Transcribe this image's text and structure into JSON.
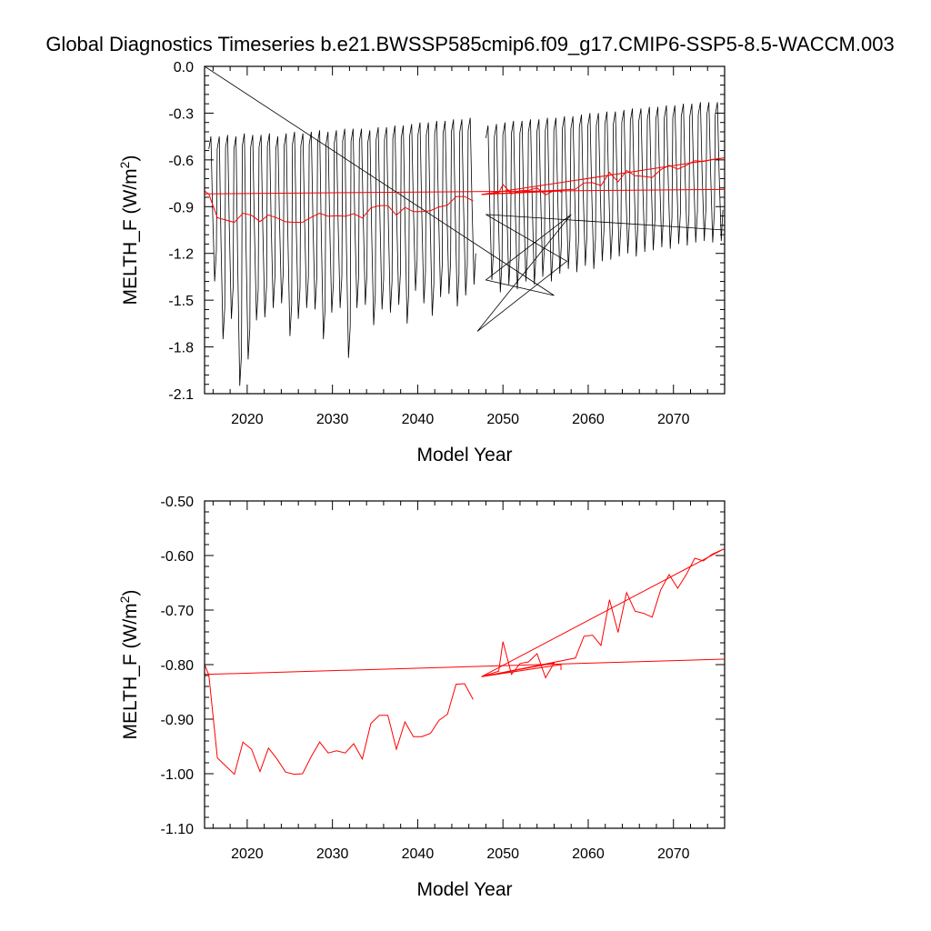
{
  "figure": {
    "title": "Global Diagnostics Timeseries b.e21.BWSSP585cmip6.f09_g17.CMIP6-SSP5-8.5-WACCM.003"
  },
  "chart_data": [
    {
      "type": "line",
      "ylabel": "MELTH_F (W/m²)",
      "ylabel_main": "MELTH_F (W/m",
      "ylabel_sup": "2",
      "ylabel_close": ")",
      "xlabel": "Model Year",
      "xlim": [
        2015,
        2076
      ],
      "ylim": [
        -2.1,
        0.0
      ],
      "xticks": [
        2020,
        2030,
        2040,
        2050,
        2060,
        2070
      ],
      "xtick_labels": [
        "2020",
        "2030",
        "2040",
        "2050",
        "2060",
        "2070"
      ],
      "yticks": [
        0.0,
        -0.3,
        -0.6,
        -0.9,
        -1.2,
        -1.5,
        -1.8,
        -2.1
      ],
      "ytick_labels": [
        "0.0",
        "-0.3",
        "-0.6",
        "-0.9",
        "-1.2",
        "-1.5",
        "-1.8",
        "-2.1"
      ],
      "grid": false,
      "series": [
        {
          "color": "#000000",
          "kind": "monthly",
          "points": [
            [
              2015.0,
              0.0
            ],
            [
              2056.0,
              -1.47
            ],
            [
              2048.0,
              -1.37
            ],
            [
              2058.0,
              -0.95
            ],
            [
              2047.0,
              -1.7
            ],
            [
              2057.5,
              -1.25
            ],
            [
              2048.0,
              -0.95
            ],
            [
              2076.0,
              -1.05
            ]
          ],
          "segments": [
            {
              "x_start": 2015.5,
              "x_end": 2046.9,
              "max": [
                -0.45,
                -0.45,
                -0.44,
                -0.45,
                -0.43,
                -0.44,
                -0.44,
                -0.43,
                -0.45,
                -0.43,
                -0.42,
                -0.43,
                -0.42,
                -0.41,
                -0.42,
                -0.41,
                -0.4,
                -0.4,
                -0.4,
                -0.41,
                -0.39,
                -0.39,
                -0.38,
                -0.38,
                -0.37,
                -0.36,
                -0.36,
                -0.35,
                -0.35,
                -0.34,
                -0.34,
                -0.33
              ],
              "min": [
                -1.38,
                -1.75,
                -1.62,
                -2.05,
                -1.88,
                -1.63,
                -1.61,
                -1.55,
                -1.52,
                -1.73,
                -1.62,
                -1.55,
                -1.56,
                -1.75,
                -1.58,
                -1.55,
                -1.87,
                -1.55,
                -1.53,
                -1.66,
                -1.56,
                -1.58,
                -1.53,
                -1.65,
                -1.44,
                -1.52,
                -1.6,
                -1.48,
                -1.46,
                -1.54,
                -1.47,
                -1.4
              ]
            },
            {
              "x_start": 2048.0,
              "x_end": 2075.9,
              "max": [
                -0.38,
                -0.37,
                -0.36,
                -0.35,
                -0.35,
                -0.34,
                -0.34,
                -0.33,
                -0.33,
                -0.32,
                -0.32,
                -0.31,
                -0.3,
                -0.3,
                -0.29,
                -0.29,
                -0.28,
                -0.27,
                -0.27,
                -0.26,
                -0.26,
                -0.25,
                -0.25,
                -0.24,
                -0.24,
                -0.23,
                -0.23,
                -0.23
              ],
              "min": [
                -1.37,
                -1.45,
                -1.4,
                -1.43,
                -1.38,
                -1.4,
                -1.35,
                -1.38,
                -1.33,
                -1.3,
                -1.32,
                -1.28,
                -1.3,
                -1.25,
                -1.24,
                -1.22,
                -1.2,
                -1.22,
                -1.19,
                -1.18,
                -1.16,
                -1.17,
                -1.14,
                -1.15,
                -1.13,
                -1.12,
                -1.13,
                -1.12
              ]
            }
          ]
        },
        {
          "color": "#ff0000",
          "kind": "annual",
          "segments": [
            [
              [
                2015.0,
                -0.8
              ],
              [
                2015.5,
                -0.819
              ],
              [
                2016.5,
                -0.971
              ],
              [
                2017.5,
                -0.986
              ],
              [
                2018.5,
                -1.001
              ],
              [
                2019.5,
                -0.942
              ],
              [
                2020.5,
                -0.955
              ],
              [
                2021.5,
                -0.996
              ],
              [
                2022.5,
                -0.953
              ],
              [
                2023.5,
                -0.973
              ],
              [
                2024.5,
                -0.997
              ],
              [
                2025.5,
                -1.001
              ],
              [
                2026.5,
                -1.0
              ],
              [
                2027.5,
                -0.969
              ],
              [
                2028.5,
                -0.942
              ],
              [
                2029.5,
                -0.962
              ],
              [
                2030.5,
                -0.958
              ],
              [
                2031.5,
                -0.962
              ],
              [
                2032.5,
                -0.945
              ],
              [
                2033.5,
                -0.973
              ],
              [
                2034.5,
                -0.908
              ],
              [
                2035.5,
                -0.893
              ],
              [
                2036.5,
                -0.893
              ],
              [
                2037.5,
                -0.955
              ],
              [
                2038.5,
                -0.905
              ],
              [
                2039.5,
                -0.932
              ],
              [
                2040.5,
                -0.932
              ],
              [
                2041.5,
                -0.926
              ],
              [
                2042.5,
                -0.902
              ],
              [
                2043.5,
                -0.891
              ],
              [
                2044.5,
                -0.836
              ],
              [
                2045.5,
                -0.835
              ],
              [
                2046.5,
                -0.864
              ]
            ],
            [
              [
                2015.0,
                -0.818
              ],
              [
                2075.9,
                -0.79
              ]
            ],
            [
              [
                2047.5,
                -0.822
              ],
              [
                2049.5,
                -0.812
              ],
              [
                2050.0,
                -0.758
              ],
              [
                2051.0,
                -0.818
              ],
              [
                2052.0,
                -0.798
              ],
              [
                2053.0,
                -0.795
              ],
              [
                2054.0,
                -0.78
              ],
              [
                2055.0,
                -0.824
              ],
              [
                2056.0,
                -0.797
              ],
              [
                2047.5,
                -0.822
              ],
              [
                2056.8,
                -0.8
              ],
              [
                2056.8,
                -0.81
              ]
            ],
            [
              [
                2047.5,
                -0.822
              ],
              [
                2058.5,
                -0.788
              ],
              [
                2059.5,
                -0.748
              ],
              [
                2060.5,
                -0.746
              ],
              [
                2061.5,
                -0.765
              ],
              [
                2062.5,
                -0.681
              ],
              [
                2063.5,
                -0.741
              ],
              [
                2064.5,
                -0.668
              ],
              [
                2065.5,
                -0.702
              ],
              [
                2066.5,
                -0.706
              ],
              [
                2067.5,
                -0.713
              ],
              [
                2068.5,
                -0.663
              ],
              [
                2069.5,
                -0.635
              ],
              [
                2070.5,
                -0.66
              ],
              [
                2071.5,
                -0.635
              ],
              [
                2072.5,
                -0.605
              ],
              [
                2073.5,
                -0.61
              ],
              [
                2074.5,
                -0.598
              ],
              [
                2075.9,
                -0.588
              ]
            ],
            [
              [
                2047.5,
                -0.822
              ],
              [
                2075.9,
                -0.588
              ]
            ]
          ]
        }
      ]
    },
    {
      "type": "line",
      "ylabel": "MELTH_F (W/m²)",
      "ylabel_main": "MELTH_F (W/m",
      "ylabel_sup": "2",
      "ylabel_close": ")",
      "xlabel": "Model Year",
      "xlim": [
        2015,
        2076
      ],
      "ylim": [
        -1.1,
        -0.5
      ],
      "xticks": [
        2020,
        2030,
        2040,
        2050,
        2060,
        2070
      ],
      "xtick_labels": [
        "2020",
        "2030",
        "2040",
        "2050",
        "2060",
        "2070"
      ],
      "yticks": [
        -0.5,
        -0.6,
        -0.7,
        -0.8,
        -0.9,
        -1.0,
        -1.1
      ],
      "ytick_labels": [
        "-0.50",
        "-0.60",
        "-0.70",
        "-0.80",
        "-0.90",
        "-1.00",
        "-1.10"
      ],
      "grid": false,
      "series": [
        {
          "color": "#ff0000",
          "kind": "annual",
          "segments": [
            [
              [
                2015.0,
                -0.8
              ],
              [
                2015.5,
                -0.819
              ],
              [
                2016.5,
                -0.971
              ],
              [
                2017.5,
                -0.986
              ],
              [
                2018.5,
                -1.001
              ],
              [
                2019.5,
                -0.942
              ],
              [
                2020.5,
                -0.955
              ],
              [
                2021.5,
                -0.996
              ],
              [
                2022.5,
                -0.953
              ],
              [
                2023.5,
                -0.973
              ],
              [
                2024.5,
                -0.997
              ],
              [
                2025.5,
                -1.001
              ],
              [
                2026.5,
                -1.0
              ],
              [
                2027.5,
                -0.969
              ],
              [
                2028.5,
                -0.942
              ],
              [
                2029.5,
                -0.962
              ],
              [
                2030.5,
                -0.958
              ],
              [
                2031.5,
                -0.962
              ],
              [
                2032.5,
                -0.945
              ],
              [
                2033.5,
                -0.973
              ],
              [
                2034.5,
                -0.908
              ],
              [
                2035.5,
                -0.893
              ],
              [
                2036.5,
                -0.893
              ],
              [
                2037.5,
                -0.955
              ],
              [
                2038.5,
                -0.905
              ],
              [
                2039.5,
                -0.932
              ],
              [
                2040.5,
                -0.932
              ],
              [
                2041.5,
                -0.926
              ],
              [
                2042.5,
                -0.902
              ],
              [
                2043.5,
                -0.891
              ],
              [
                2044.5,
                -0.836
              ],
              [
                2045.5,
                -0.835
              ],
              [
                2046.5,
                -0.864
              ]
            ],
            [
              [
                2015.0,
                -0.818
              ],
              [
                2075.9,
                -0.79
              ]
            ],
            [
              [
                2047.5,
                -0.822
              ],
              [
                2049.5,
                -0.812
              ],
              [
                2050.0,
                -0.758
              ],
              [
                2051.0,
                -0.818
              ],
              [
                2052.0,
                -0.798
              ],
              [
                2053.0,
                -0.795
              ],
              [
                2054.0,
                -0.78
              ],
              [
                2055.0,
                -0.824
              ],
              [
                2056.0,
                -0.797
              ],
              [
                2047.5,
                -0.822
              ],
              [
                2056.8,
                -0.8
              ],
              [
                2056.8,
                -0.81
              ]
            ],
            [
              [
                2047.5,
                -0.822
              ],
              [
                2058.5,
                -0.788
              ],
              [
                2059.5,
                -0.748
              ],
              [
                2060.5,
                -0.746
              ],
              [
                2061.5,
                -0.765
              ],
              [
                2062.5,
                -0.681
              ],
              [
                2063.5,
                -0.741
              ],
              [
                2064.5,
                -0.668
              ],
              [
                2065.5,
                -0.702
              ],
              [
                2066.5,
                -0.706
              ],
              [
                2067.5,
                -0.713
              ],
              [
                2068.5,
                -0.663
              ],
              [
                2069.5,
                -0.635
              ],
              [
                2070.5,
                -0.66
              ],
              [
                2071.5,
                -0.635
              ],
              [
                2072.5,
                -0.605
              ],
              [
                2073.5,
                -0.61
              ],
              [
                2074.5,
                -0.598
              ],
              [
                2075.9,
                -0.588
              ]
            ],
            [
              [
                2047.5,
                -0.822
              ],
              [
                2075.9,
                -0.588
              ]
            ]
          ]
        }
      ]
    }
  ]
}
